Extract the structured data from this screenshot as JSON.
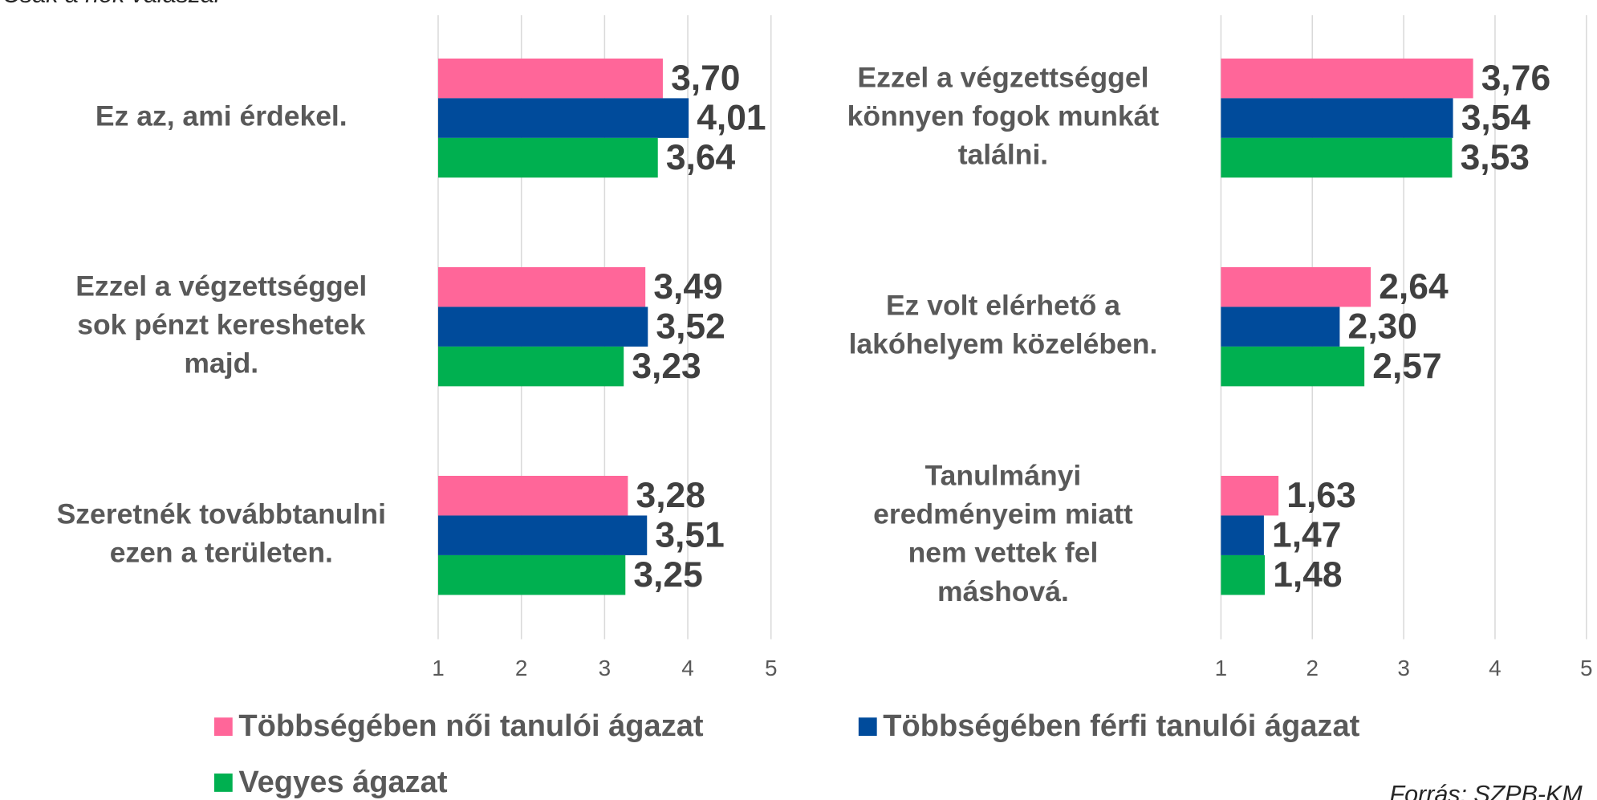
{
  "subtitle": "Csak a nők válaszai",
  "source": "Forrás: SZPB-KM",
  "chart_data": [
    {
      "type": "bar",
      "orientation": "horizontal",
      "categories": [
        [
          "Ez az, ami érdekel."
        ],
        [
          "Ezzel a végzettséggel",
          "sok pénzt kereshetek",
          "majd."
        ],
        [
          "Szeretnék továbbtanulni",
          "ezen a területen."
        ]
      ],
      "series": [
        {
          "name": "Többségében női tanulói ágazat",
          "color": "#ff6699",
          "values": [
            3.7,
            3.49,
            3.28
          ],
          "value_labels": [
            "3,70",
            "3,49",
            "3,28"
          ]
        },
        {
          "name": "Többségében férfi tanulói ágazat",
          "color": "#004b9b",
          "values": [
            4.01,
            3.52,
            3.51
          ],
          "value_labels": [
            "4,01",
            "3,52",
            "3,51"
          ]
        },
        {
          "name": "Vegyes ágazat",
          "color": "#00b050",
          "values": [
            3.64,
            3.23,
            3.25
          ],
          "value_labels": [
            "3,64",
            "3,23",
            "3,25"
          ]
        }
      ],
      "xlim": [
        1,
        5
      ],
      "xticks": [
        1,
        2,
        3,
        4,
        5
      ],
      "grid": true
    },
    {
      "type": "bar",
      "orientation": "horizontal",
      "categories": [
        [
          "Ezzel a végzettséggel",
          "könnyen fogok munkát",
          "találni."
        ],
        [
          "Ez volt elérhető a",
          "lakóhelyem közelében."
        ],
        [
          "Tanulmányi",
          "eredményeim miatt",
          "nem vettek fel",
          "máshová."
        ]
      ],
      "series": [
        {
          "color": "#ff6699",
          "values": [
            3.76,
            2.64,
            1.63
          ],
          "value_labels": [
            "3,76",
            "2,64",
            "1,63"
          ]
        },
        {
          "color": "#004b9b",
          "values": [
            3.54,
            2.3,
            1.47
          ],
          "value_labels": [
            "3,54",
            "2,30",
            "1,47"
          ]
        },
        {
          "color": "#00b050",
          "values": [
            3.53,
            2.57,
            1.48
          ],
          "value_labels": [
            "3,53",
            "2,57",
            "1,48"
          ]
        }
      ],
      "xlim": [
        1,
        5
      ],
      "xticks": [
        1,
        2,
        3,
        4,
        5
      ],
      "grid": true
    }
  ],
  "legend_position": "bottom"
}
